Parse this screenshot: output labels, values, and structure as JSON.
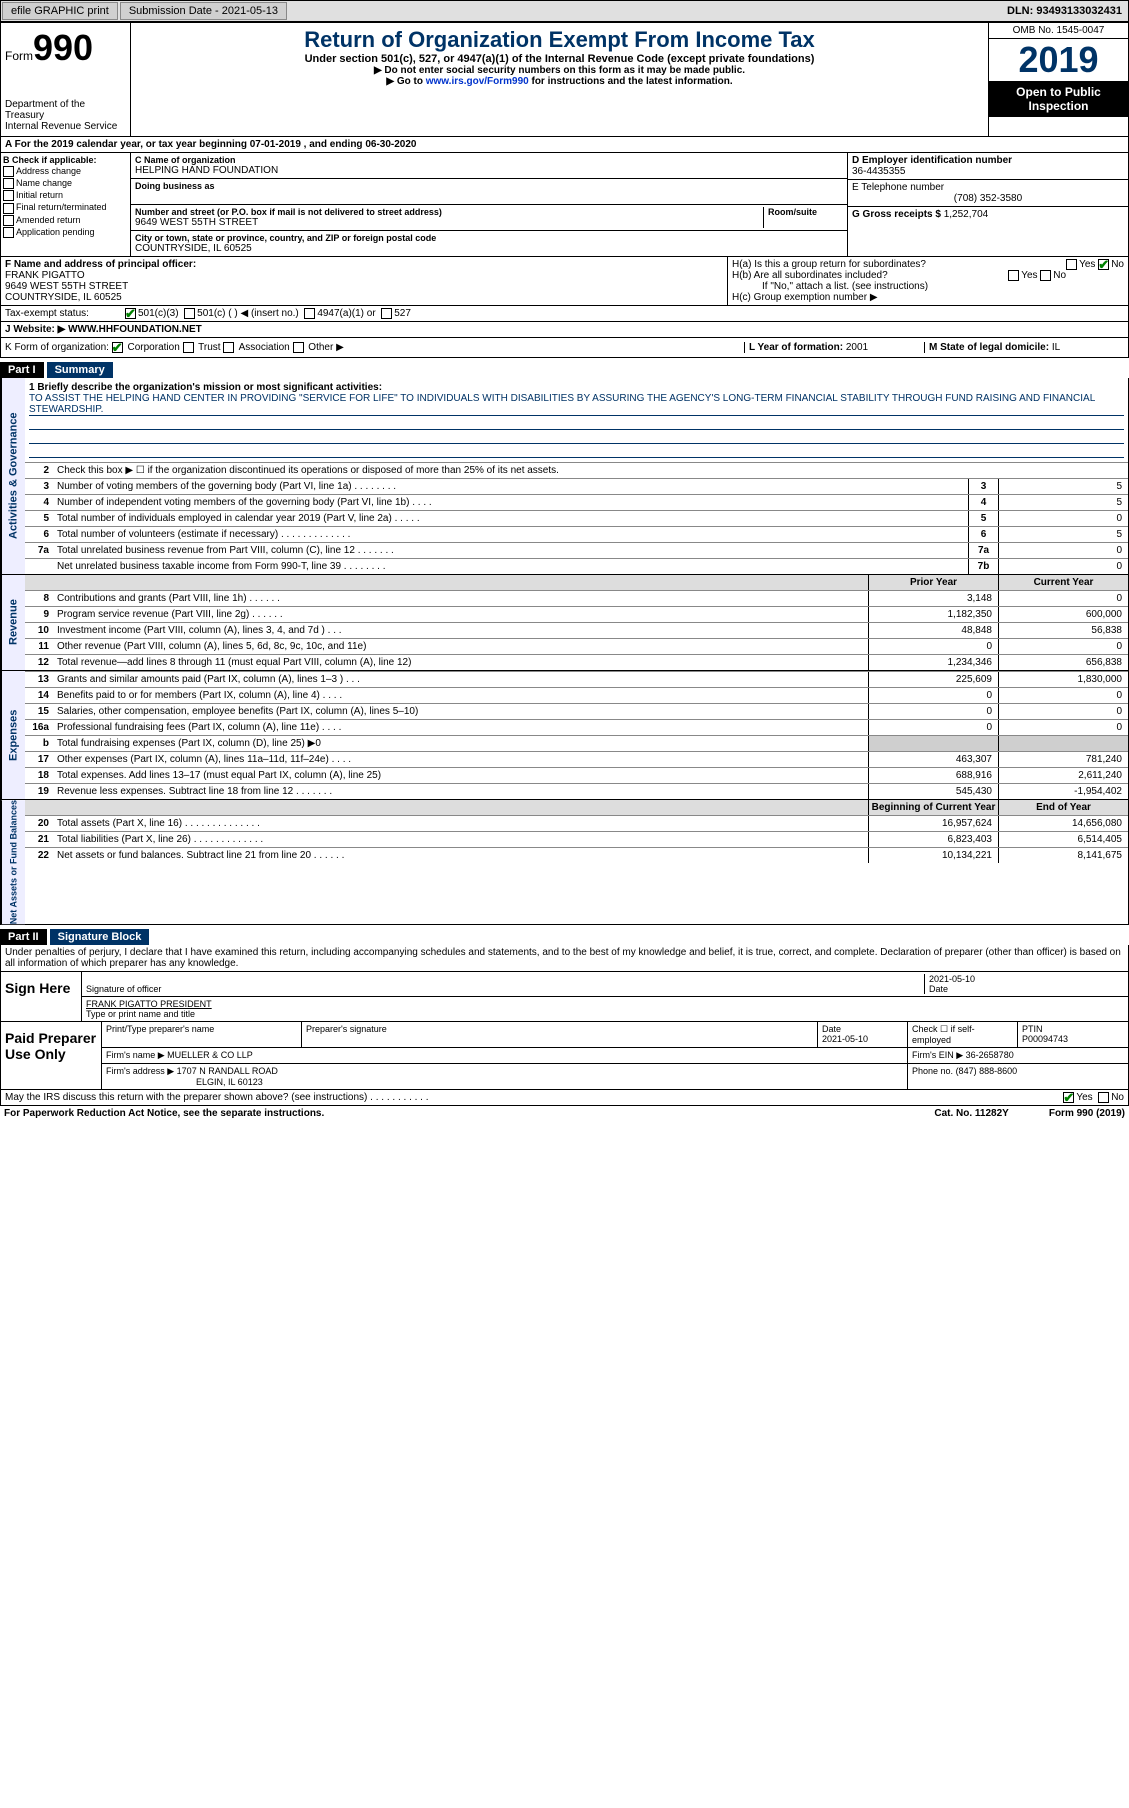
{
  "topbar": {
    "efile": "efile GRAPHIC print",
    "submission_label": "Submission Date - 2021-05-13",
    "dln": "DLN: 93493133032431"
  },
  "header": {
    "form_word": "Form",
    "form_num": "990",
    "dept": "Department of the Treasury\nInternal Revenue Service",
    "title": "Return of Organization Exempt From Income Tax",
    "subtitle": "Under section 501(c), 527, or 4947(a)(1) of the Internal Revenue Code (except private foundations)",
    "note1": "▶ Do not enter social security numbers on this form as it may be made public.",
    "note2_pre": "▶ Go to ",
    "note2_link": "www.irs.gov/Form990",
    "note2_post": " for instructions and the latest information.",
    "omb": "OMB No. 1545-0047",
    "year": "2019",
    "open": "Open to Public Inspection"
  },
  "period": "A For the 2019 calendar year, or tax year beginning 07-01-2019    , and ending 06-30-2020",
  "sectionB": {
    "hdr": "B Check if applicable:",
    "items": [
      "Address change",
      "Name change",
      "Initial return",
      "Final return/terminated",
      "Amended return",
      "Application pending"
    ]
  },
  "sectionC": {
    "name_label": "C Name of organization",
    "name": "HELPING HAND FOUNDATION",
    "dba_label": "Doing business as",
    "addr_label": "Number and street (or P.O. box if mail is not delivered to street address)",
    "room_label": "Room/suite",
    "addr": "9649 WEST 55TH STREET",
    "city_label": "City or town, state or province, country, and ZIP or foreign postal code",
    "city": "COUNTRYSIDE, IL  60525"
  },
  "sectionD": {
    "label": "D Employer identification number",
    "value": "36-4435355"
  },
  "sectionE": {
    "label": "E Telephone number",
    "value": "(708) 352-3580"
  },
  "sectionG": {
    "label": "G Gross receipts $",
    "value": "1,252,704"
  },
  "sectionF": {
    "label": "F  Name and address of principal officer:",
    "name": "FRANK PIGATTO",
    "addr1": "9649 WEST 55TH STREET",
    "addr2": "COUNTRYSIDE, IL  60525"
  },
  "sectionH": {
    "ha": "H(a)  Is this a group return for subordinates?",
    "hb": "H(b)  Are all subordinates included?",
    "hb_note": "If \"No,\" attach a list. (see instructions)",
    "hc": "H(c)  Group exemption number ▶",
    "yes": "Yes",
    "no": "No"
  },
  "taxstatus": {
    "label": "Tax-exempt status:",
    "opt1": "501(c)(3)",
    "opt2": "501(c) (   ) ◀ (insert no.)",
    "opt3": "4947(a)(1) or",
    "opt4": "527"
  },
  "website": {
    "label": "J   Website: ▶",
    "value": "WWW.HHFOUNDATION.NET"
  },
  "korg": {
    "k": "K Form of organization:",
    "opts": [
      "Corporation",
      "Trust",
      "Association",
      "Other ▶"
    ],
    "l_label": "L Year of formation:",
    "l_value": "2001",
    "m_label": "M State of legal domicile:",
    "m_value": "IL"
  },
  "part1": {
    "header": "Part I",
    "title": "Summary",
    "sidebar_ag": "Activities & Governance",
    "sidebar_rev": "Revenue",
    "sidebar_exp": "Expenses",
    "sidebar_na": "Net Assets or Fund Balances",
    "line1_label": "1  Briefly describe the organization's mission or most significant activities:",
    "line1_text": "TO ASSIST THE HELPING HAND CENTER IN PROVIDING \"SERVICE FOR LIFE\" TO INDIVIDUALS WITH DISABILITIES BY ASSURING THE AGENCY'S LONG-TERM FINANCIAL STABILITY THROUGH FUND RAISING AND FINANCIAL STEWARDSHIP.",
    "line2": "Check this box ▶ ☐ if the organization discontinued its operations or disposed of more than 25% of its net assets.",
    "col_prior": "Prior Year",
    "col_current": "Current Year",
    "col_begin": "Beginning of Current Year",
    "col_end": "End of Year",
    "rows_gov": [
      {
        "n": "3",
        "d": "Number of voting members of the governing body (Part VI, line 1a)  .  .  .  .  .  .  .  .",
        "box": "3",
        "v": "5"
      },
      {
        "n": "4",
        "d": "Number of independent voting members of the governing body (Part VI, line 1b)  .  .  .  .",
        "box": "4",
        "v": "5"
      },
      {
        "n": "5",
        "d": "Total number of individuals employed in calendar year 2019 (Part V, line 2a)  .  .  .  .  .",
        "box": "5",
        "v": "0"
      },
      {
        "n": "6",
        "d": "Total number of volunteers (estimate if necessary)   .  .  .  .  .  .  .  .  .  .  .  .  .",
        "box": "6",
        "v": "5"
      },
      {
        "n": "7a",
        "d": "Total unrelated business revenue from Part VIII, column (C), line 12  .  .  .  .  .  .  .",
        "box": "7a",
        "v": "0"
      },
      {
        "n": "",
        "d": "Net unrelated business taxable income from Form 990-T, line 39  .  .  .  .  .  .  .  .",
        "box": "7b",
        "v": "0"
      }
    ],
    "rows_rev": [
      {
        "n": "8",
        "d": "Contributions and grants (Part VIII, line 1h)  .  .  .  .  .  .",
        "p": "3,148",
        "c": "0"
      },
      {
        "n": "9",
        "d": "Program service revenue (Part VIII, line 2g)  .  .  .  .  .  .",
        "p": "1,182,350",
        "c": "600,000"
      },
      {
        "n": "10",
        "d": "Investment income (Part VIII, column (A), lines 3, 4, and 7d )  .  .  .",
        "p": "48,848",
        "c": "56,838"
      },
      {
        "n": "11",
        "d": "Other revenue (Part VIII, column (A), lines 5, 6d, 8c, 9c, 10c, and 11e)",
        "p": "0",
        "c": "0"
      },
      {
        "n": "12",
        "d": "Total revenue—add lines 8 through 11 (must equal Part VIII, column (A), line 12)",
        "p": "1,234,346",
        "c": "656,838"
      }
    ],
    "rows_exp": [
      {
        "n": "13",
        "d": "Grants and similar amounts paid (Part IX, column (A), lines 1–3 )  .  .  .",
        "p": "225,609",
        "c": "1,830,000"
      },
      {
        "n": "14",
        "d": "Benefits paid to or for members (Part IX, column (A), line 4)  .  .  .  .",
        "p": "0",
        "c": "0"
      },
      {
        "n": "15",
        "d": "Salaries, other compensation, employee benefits (Part IX, column (A), lines 5–10)",
        "p": "0",
        "c": "0"
      },
      {
        "n": "16a",
        "d": "Professional fundraising fees (Part IX, column (A), line 11e)  .  .  .  .",
        "p": "0",
        "c": "0"
      },
      {
        "n": "b",
        "d": "Total fundraising expenses (Part IX, column (D), line 25) ▶0",
        "p": "shaded",
        "c": "shaded"
      },
      {
        "n": "17",
        "d": "Other expenses (Part IX, column (A), lines 11a–11d, 11f–24e)  .  .  .  .",
        "p": "463,307",
        "c": "781,240"
      },
      {
        "n": "18",
        "d": "Total expenses. Add lines 13–17 (must equal Part IX, column (A), line 25)",
        "p": "688,916",
        "c": "2,611,240"
      },
      {
        "n": "19",
        "d": "Revenue less expenses. Subtract line 18 from line 12 .  .  .  .  .  .  .",
        "p": "545,430",
        "c": "-1,954,402"
      }
    ],
    "rows_na": [
      {
        "n": "20",
        "d": "Total assets (Part X, line 16)  .  .  .  .  .  .  .  .  .  .  .  .  .  .",
        "p": "16,957,624",
        "c": "14,656,080"
      },
      {
        "n": "21",
        "d": "Total liabilities (Part X, line 26)  .  .  .  .  .  .  .  .  .  .  .  .  .",
        "p": "6,823,403",
        "c": "6,514,405"
      },
      {
        "n": "22",
        "d": "Net assets or fund balances. Subtract line 21 from line 20 .  .  .  .  .  .",
        "p": "10,134,221",
        "c": "8,141,675"
      }
    ]
  },
  "part2": {
    "header": "Part II",
    "title": "Signature Block",
    "declaration": "Under penalties of perjury, I declare that I have examined this return, including accompanying schedules and statements, and to the best of my knowledge and belief, it is true, correct, and complete. Declaration of preparer (other than officer) is based on all information of which preparer has any knowledge.",
    "sign_here": "Sign Here",
    "sig_officer": "Signature of officer",
    "sig_date_label": "Date",
    "sig_date": "2021-05-10",
    "sig_name": "FRANK PIGATTO PRESIDENT",
    "sig_name_label": "Type or print name and title",
    "paid_prep": "Paid Preparer Use Only",
    "prep_name_label": "Print/Type preparer's name",
    "prep_sig_label": "Preparer's signature",
    "prep_date_label": "Date",
    "prep_date": "2021-05-10",
    "prep_check": "Check ☐ if self-employed",
    "ptin_label": "PTIN",
    "ptin": "P00094743",
    "firm_name_label": "Firm's name   ▶",
    "firm_name": "MUELLER & CO LLP",
    "firm_ein_label": "Firm's EIN ▶",
    "firm_ein": "36-2658780",
    "firm_addr_label": "Firm's address ▶",
    "firm_addr1": "1707 N RANDALL ROAD",
    "firm_addr2": "ELGIN, IL  60123",
    "firm_phone_label": "Phone no.",
    "firm_phone": "(847) 888-8600",
    "discuss": "May the IRS discuss this return with the preparer shown above? (see instructions)  .  .  .  .  .  .  .  .  .  .  .",
    "yes": "Yes",
    "no": "No"
  },
  "footer": {
    "note": "For Paperwork Reduction Act Notice, see the separate instructions.",
    "cat": "Cat. No. 11282Y",
    "form": "Form 990 (2019)"
  }
}
